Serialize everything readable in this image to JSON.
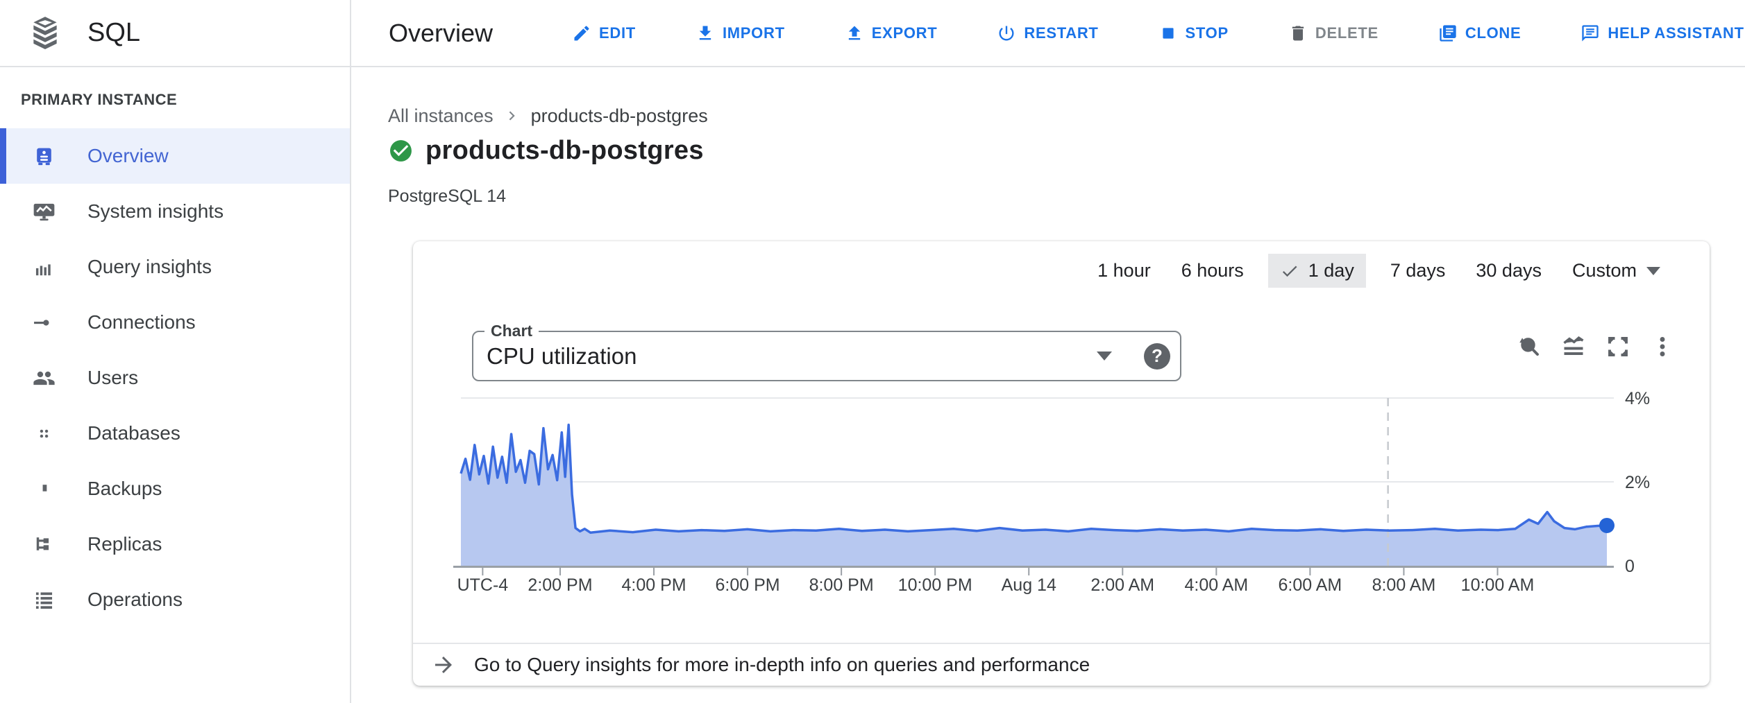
{
  "app": {
    "product": "SQL"
  },
  "sidebar": {
    "section_label": "PRIMARY INSTANCE",
    "items": [
      {
        "label": "Overview",
        "selected": true
      },
      {
        "label": "System insights"
      },
      {
        "label": "Query insights"
      },
      {
        "label": "Connections"
      },
      {
        "label": "Users"
      },
      {
        "label": "Databases"
      },
      {
        "label": "Backups"
      },
      {
        "label": "Replicas"
      },
      {
        "label": "Operations"
      }
    ]
  },
  "toolbar": {
    "title": "Overview",
    "actions": [
      {
        "label": "EDIT"
      },
      {
        "label": "IMPORT"
      },
      {
        "label": "EXPORT"
      },
      {
        "label": "RESTART"
      },
      {
        "label": "STOP"
      },
      {
        "label": "DELETE",
        "disabled": true
      },
      {
        "label": "CLONE"
      },
      {
        "label": "HELP ASSISTANT"
      }
    ]
  },
  "page": {
    "breadcrumb": [
      "All instances",
      "products-db-postgres"
    ],
    "title": "products-db-postgres",
    "status": "running",
    "subtitle": "PostgreSQL 14"
  },
  "time_range": {
    "options": [
      "1 hour",
      "6 hours",
      "1 day",
      "7 days",
      "30 days",
      "Custom"
    ],
    "selected": "1 day"
  },
  "chart_controls": {
    "label": "Chart",
    "selected_metric": "CPU utilization",
    "help_glyph": "?"
  },
  "chart_data": {
    "type": "area",
    "title": "CPU utilization",
    "unit": "%",
    "ylim": [
      0,
      4.2
    ],
    "grid": true,
    "y_ticks": [
      {
        "label": "4%",
        "value": 4
      },
      {
        "label": "2%",
        "value": 2
      },
      {
        "label": "0",
        "value": 0
      }
    ],
    "x_ticks": [
      {
        "label": "UTC-4",
        "f": 0.019
      },
      {
        "label": "2:00 PM",
        "f": 0.0866
      },
      {
        "label": "4:00 PM",
        "f": 0.1684
      },
      {
        "label": "6:00 PM",
        "f": 0.2502
      },
      {
        "label": "8:00 PM",
        "f": 0.332
      },
      {
        "label": "10:00 PM",
        "f": 0.4138
      },
      {
        "label": "Aug 14",
        "f": 0.4956
      },
      {
        "label": "2:00 AM",
        "f": 0.5774
      },
      {
        "label": "4:00 AM",
        "f": 0.6592
      },
      {
        "label": "6:00 AM",
        "f": 0.741
      },
      {
        "label": "8:00 AM",
        "f": 0.8228
      },
      {
        "label": "10:00 AM",
        "f": 0.9046
      }
    ],
    "now_marker_f": 0.809,
    "end_dot": true,
    "points": [
      [
        0.0,
        2.2
      ],
      [
        0.004,
        2.55
      ],
      [
        0.008,
        2.05
      ],
      [
        0.012,
        2.88
      ],
      [
        0.016,
        2.18
      ],
      [
        0.02,
        2.62
      ],
      [
        0.024,
        1.96
      ],
      [
        0.028,
        2.84
      ],
      [
        0.032,
        2.1
      ],
      [
        0.036,
        2.6
      ],
      [
        0.04,
        1.98
      ],
      [
        0.044,
        3.14
      ],
      [
        0.048,
        2.24
      ],
      [
        0.052,
        2.52
      ],
      [
        0.056,
        1.98
      ],
      [
        0.06,
        2.74
      ],
      [
        0.064,
        2.66
      ],
      [
        0.068,
        1.94
      ],
      [
        0.072,
        3.28
      ],
      [
        0.076,
        2.3
      ],
      [
        0.08,
        2.64
      ],
      [
        0.084,
        2.04
      ],
      [
        0.088,
        3.18
      ],
      [
        0.091,
        2.12
      ],
      [
        0.094,
        3.36
      ],
      [
        0.097,
        1.7
      ],
      [
        0.1,
        0.9
      ],
      [
        0.104,
        0.82
      ],
      [
        0.108,
        0.88
      ],
      [
        0.113,
        0.79
      ],
      [
        0.13,
        0.84
      ],
      [
        0.15,
        0.8
      ],
      [
        0.17,
        0.86
      ],
      [
        0.19,
        0.82
      ],
      [
        0.21,
        0.85
      ],
      [
        0.23,
        0.83
      ],
      [
        0.25,
        0.87
      ],
      [
        0.27,
        0.82
      ],
      [
        0.29,
        0.85
      ],
      [
        0.31,
        0.84
      ],
      [
        0.33,
        0.88
      ],
      [
        0.35,
        0.83
      ],
      [
        0.37,
        0.86
      ],
      [
        0.39,
        0.82
      ],
      [
        0.41,
        0.85
      ],
      [
        0.43,
        0.88
      ],
      [
        0.45,
        0.83
      ],
      [
        0.47,
        0.9
      ],
      [
        0.49,
        0.84
      ],
      [
        0.51,
        0.86
      ],
      [
        0.53,
        0.82
      ],
      [
        0.55,
        0.88
      ],
      [
        0.57,
        0.85
      ],
      [
        0.59,
        0.83
      ],
      [
        0.61,
        0.87
      ],
      [
        0.63,
        0.84
      ],
      [
        0.65,
        0.86
      ],
      [
        0.67,
        0.82
      ],
      [
        0.69,
        0.88
      ],
      [
        0.71,
        0.85
      ],
      [
        0.73,
        0.84
      ],
      [
        0.75,
        0.87
      ],
      [
        0.77,
        0.83
      ],
      [
        0.79,
        0.86
      ],
      [
        0.81,
        0.84
      ],
      [
        0.83,
        0.85
      ],
      [
        0.85,
        0.88
      ],
      [
        0.87,
        0.84
      ],
      [
        0.89,
        0.86
      ],
      [
        0.905,
        0.85
      ],
      [
        0.92,
        0.88
      ],
      [
        0.932,
        1.1
      ],
      [
        0.94,
        1.0
      ],
      [
        0.948,
        1.28
      ],
      [
        0.954,
        1.06
      ],
      [
        0.963,
        0.9
      ],
      [
        0.972,
        0.87
      ],
      [
        0.982,
        0.93
      ],
      [
        0.992,
        0.95
      ],
      [
        1.0,
        0.96
      ]
    ],
    "colors": {
      "line": "#3b6ce0",
      "fill": "#b7c8f0",
      "dot": "#2463d6",
      "grid": "#e6e8eb",
      "axis": "#9aa0a6",
      "dashed": "#c6cacf"
    }
  },
  "insights_link": {
    "text": "Go to Query insights for more in-depth info on queries and performance"
  }
}
